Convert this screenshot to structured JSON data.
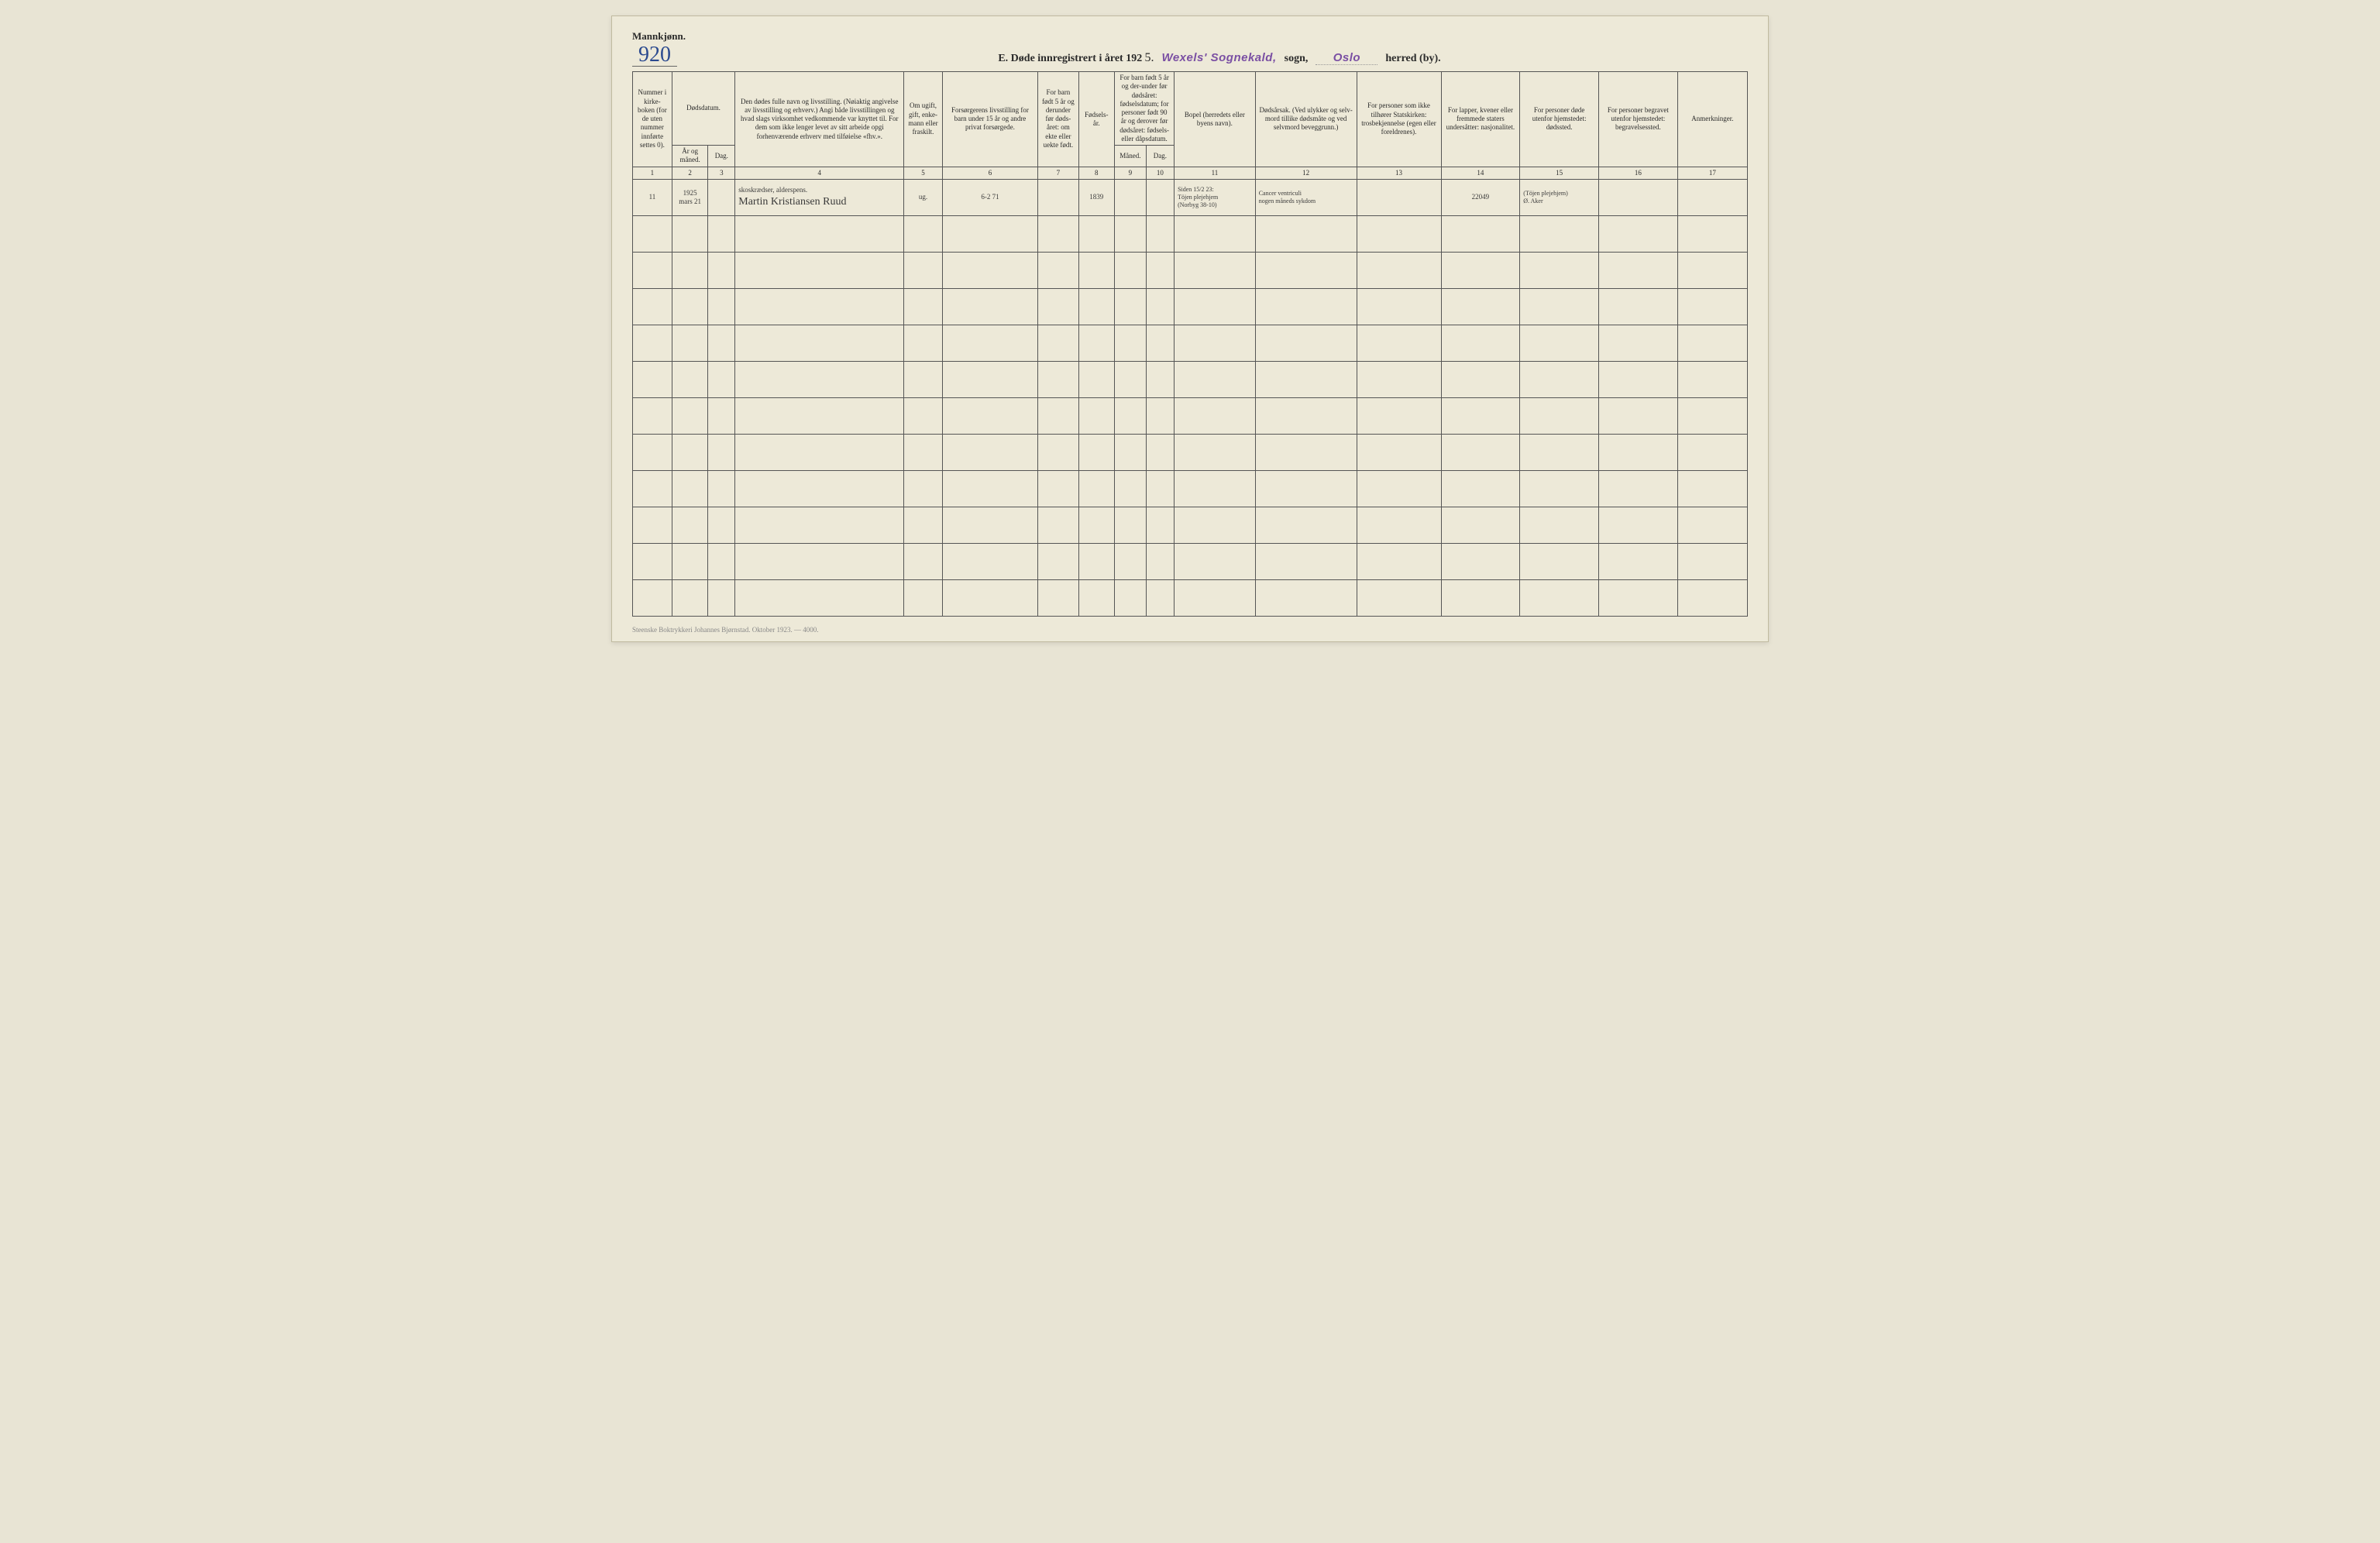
{
  "header": {
    "gender": "Mannkjønn.",
    "page_number": "920",
    "title_prefix": "E.  Døde innregistrert i året 192",
    "year_digit": "5.",
    "sognekald_stamp": "Wexels' Sognekald,",
    "sogn_word": "sogn,",
    "herred_stamp": "Oslo",
    "herred_word": "herred (by)."
  },
  "columns": {
    "c1": "Nummer i kirke-boken (for de uten nummer innførte settes 0).",
    "c2_main": "Dødsdatum.",
    "c2_sub_year": "År og måned.",
    "c2_sub_day": "Dag.",
    "c4": "Den dødes fulle navn og livsstilling. (Nøiaktig angivelse av livsstilling og erhverv.) Angi både livsstillingen og hvad slags virksomhet vedkommende var knyttet til. For dem som ikke lenger levet av sitt arbeide opgi forhenværende erhverv med tilføielse «fhv.».",
    "c5": "Om ugift, gift, enke-mann eller fraskilt.",
    "c6": "Forsørgerens livsstilling for barn under 15 år og andre privat forsørgede.",
    "c7": "For barn født 5 år og derunder før døds-året: om ekte eller uekte født.",
    "c8": "Fødsels-år.",
    "c9_main": "For barn født 5 år og der-under før dødsåret: fødselsdatum; for personer født 90 år og derover før dødsåret: fødsels- eller dåpsdatum.",
    "c9_sub_m": "Måned.",
    "c9_sub_d": "Dag.",
    "c11": "Bopel (herredets eller byens navn).",
    "c12": "Dødsårsak. (Ved ulykker og selv-mord tillike dødsmåte og ved selvmord beveggrunn.)",
    "c13": "For personer som ikke tilhører Statskirken: trosbekjennelse (egen eller foreldrenes).",
    "c14": "For lapper, kvener eller fremmede staters undersåtter: nasjonalitet.",
    "c15": "For personer døde utenfor hjemstedet: dødssted.",
    "c16": "For personer begravet utenfor hjemstedet: begravelsessted.",
    "c17": "Anmerkninger."
  },
  "col_numbers": [
    "1",
    "2",
    "3",
    "4",
    "5",
    "6",
    "7",
    "8",
    "9",
    "10",
    "11",
    "12",
    "13",
    "14",
    "15",
    "16",
    "17"
  ],
  "row": {
    "num": "11",
    "year": "1925",
    "month_day": "mars 21",
    "name_top": "skoskrædser, alderspens.",
    "name_bottom": "Martin Kristiansen Ruud",
    "marital": "ug.",
    "forsørger": "6-2 71",
    "birth_year": "1839",
    "bopel_top": "Siden 15/2 23:",
    "bopel_mid": "Töjen plejehjem",
    "bopel_bot": "(Norbyg 38-10)",
    "cause_top": "Cancer ventriculi",
    "cause_bot": "nogen måneds sykdom",
    "col14": "22049",
    "dodssted_top": "(Töjen plejehjem)",
    "dodssted_bot": "Ø. Aker"
  },
  "footer": "Steenske Boktrykkeri Johannes Bjørnstad.  Oktober 1923. — 4000.",
  "colors": {
    "stamp": "#7a4fa3",
    "ink_blue": "#2b4a8f",
    "paper": "#ede9d8",
    "border": "#555"
  },
  "empty_row_count": 11
}
